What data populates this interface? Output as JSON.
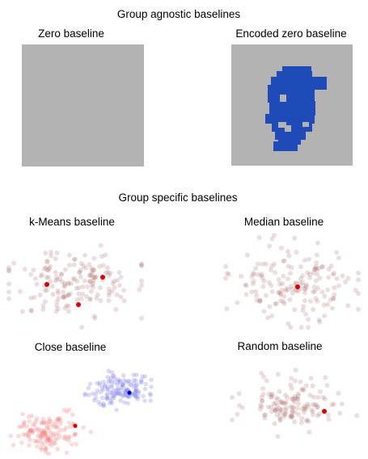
{
  "headings": {
    "group_agnostic": "Group agnostic baselines",
    "group_specific": "Group specific baselines"
  },
  "panels": {
    "zero": {
      "label": "Zero baseline"
    },
    "encoded_zero": {
      "label": "Encoded zero baseline"
    },
    "kmeans": {
      "label": "k-Means baseline"
    },
    "median": {
      "label": "Median baseline"
    },
    "close": {
      "label": "Close baseline"
    },
    "random": {
      "label": "Random baseline"
    }
  },
  "colors": {
    "gray": "#b3b3b3",
    "blue_blob": "#1f4bb8",
    "scatter_points": "#a86a6a",
    "highlight_red": "#e00000",
    "close_blue_cluster": "#7f7fe6",
    "close_red_cluster": "#f08080",
    "highlight_blue": "#0000cc"
  }
}
